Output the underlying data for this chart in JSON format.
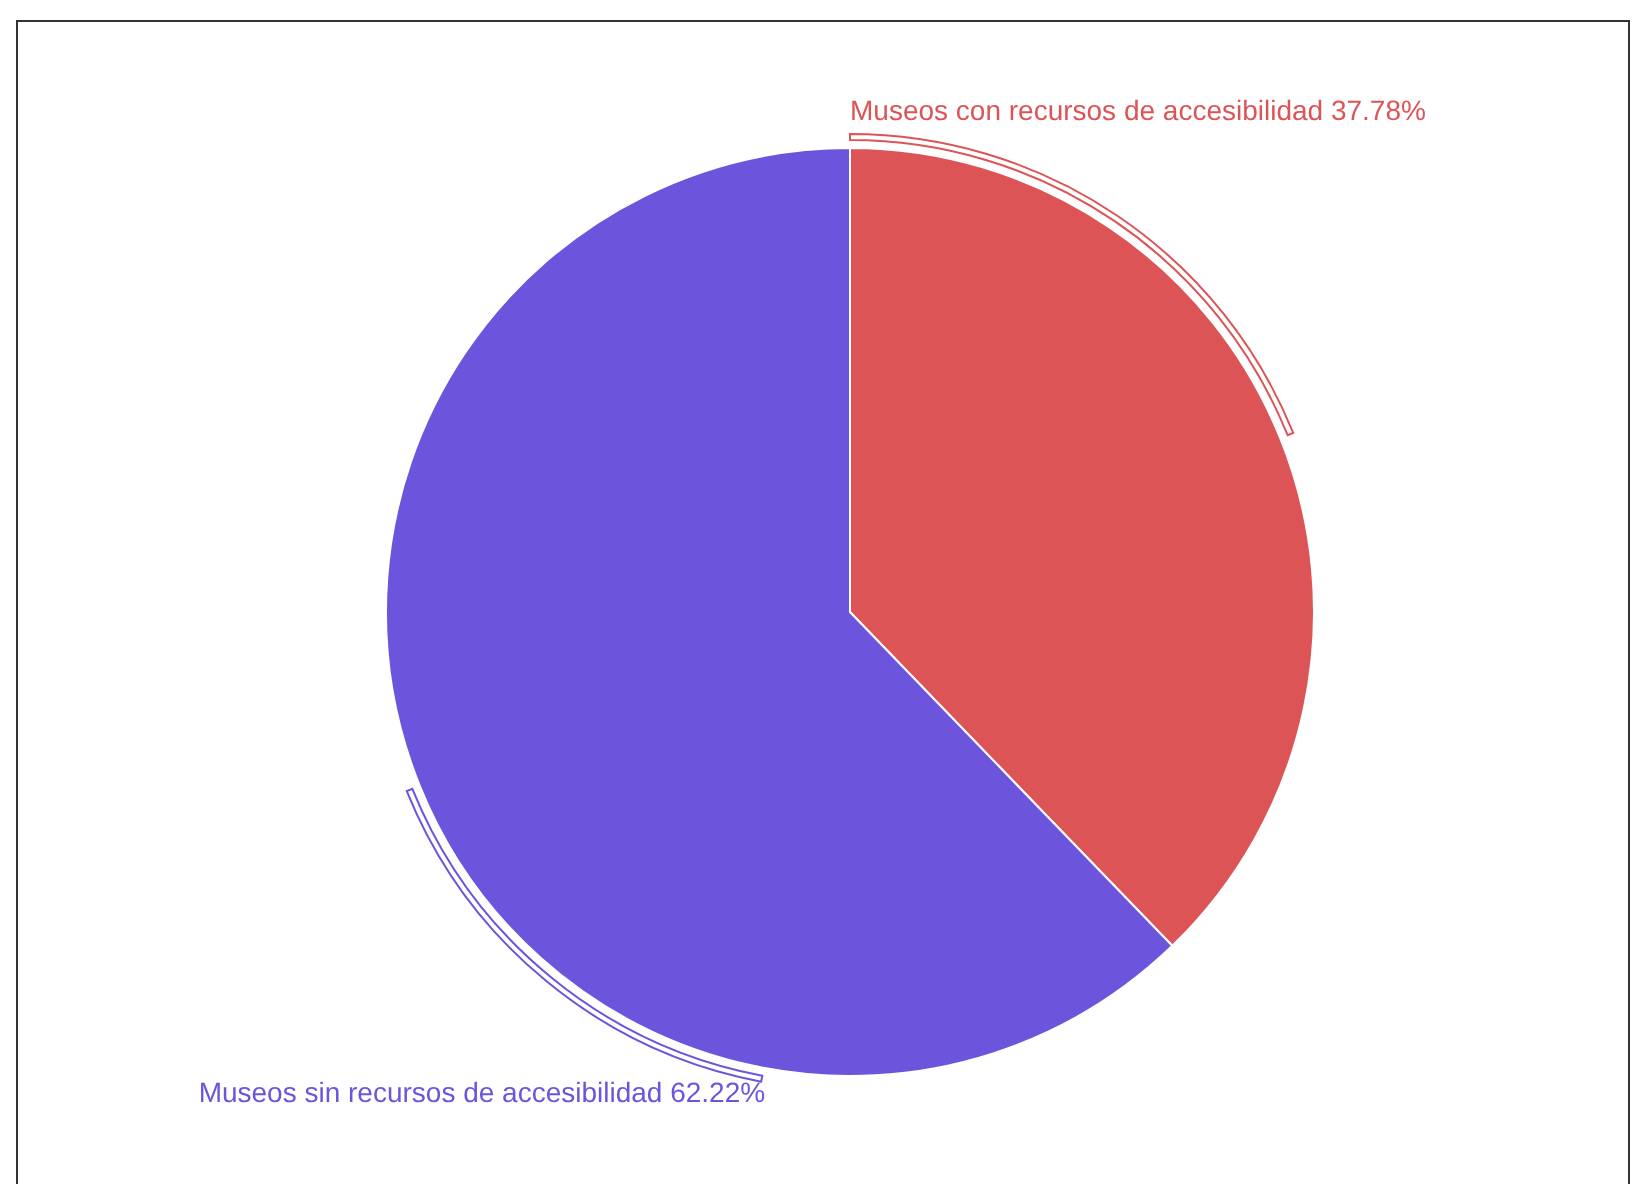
{
  "chart_data": {
    "type": "pie",
    "categories": [
      "Museos con recursos de accesibilidad",
      "Museos sin recursos de accesibilidad"
    ],
    "values": [
      37.78,
      62.22
    ],
    "colors": [
      "#dc5456",
      "#6c55dc"
    ],
    "value_labels": [
      "37.78%",
      "62.22%"
    ]
  }
}
